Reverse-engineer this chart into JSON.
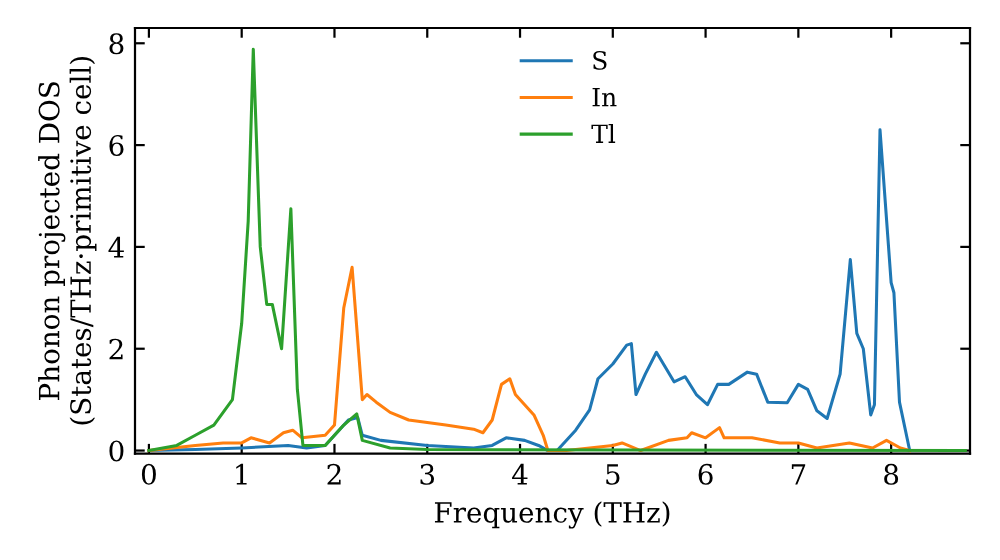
{
  "chart_data": {
    "type": "line",
    "xlabel": "Frequency (THz)",
    "ylabel": "Phonon projected DOS\n(States/THz·primitive cell)",
    "xlim": [
      -0.15,
      8.85
    ],
    "ylim": [
      -0.06,
      8.3
    ],
    "xticks": [
      0,
      1,
      2,
      3,
      4,
      5,
      6,
      7,
      8
    ],
    "yticks": [
      0,
      2,
      4,
      6,
      8
    ],
    "grid": false,
    "legend": "top center",
    "marker": "none",
    "line_style": "solid",
    "series": [
      {
        "name": "S",
        "color": "#1f77b4",
        "x": [
          0,
          0.5,
          1.0,
          1.5,
          1.7,
          1.9,
          2.15,
          2.25,
          2.3,
          2.5,
          3.0,
          3.5,
          3.7,
          3.85,
          4.05,
          4.2,
          4.3,
          4.4,
          4.6,
          4.75,
          4.84,
          5.0,
          5.15,
          5.2,
          5.25,
          5.35,
          5.47,
          5.66,
          5.78,
          5.9,
          6.02,
          6.13,
          6.25,
          6.45,
          6.55,
          6.67,
          6.88,
          7.0,
          7.1,
          7.2,
          7.31,
          7.45,
          7.56,
          7.63,
          7.7,
          7.78,
          7.82,
          7.88,
          8.0,
          8.03,
          8.09,
          8.2
        ],
        "values": [
          0,
          0.02,
          0.05,
          0.1,
          0.05,
          0.1,
          0.6,
          0.65,
          0.3,
          0.2,
          0.1,
          0.05,
          0.1,
          0.25,
          0.2,
          0.1,
          0,
          0,
          0.4,
          0.8,
          1.41,
          1.7,
          2.07,
          2.1,
          1.1,
          1.5,
          1.93,
          1.35,
          1.45,
          1.1,
          0.9,
          1.3,
          1.3,
          1.54,
          1.5,
          0.95,
          0.94,
          1.3,
          1.2,
          0.78,
          0.63,
          1.5,
          3.75,
          2.3,
          2.0,
          0.7,
          0.9,
          6.3,
          3.3,
          3.1,
          0.95,
          0
        ]
      },
      {
        "name": "In",
        "color": "#ff7f0e",
        "x": [
          0,
          0.5,
          0.8,
          1.0,
          1.1,
          1.3,
          1.45,
          1.55,
          1.65,
          1.9,
          2.0,
          2.1,
          2.19,
          2.3,
          2.35,
          2.45,
          2.6,
          2.8,
          3.2,
          3.5,
          3.6,
          3.7,
          3.8,
          3.89,
          3.95,
          4.05,
          4.15,
          4.25,
          4.3,
          4.5,
          5.0,
          5.1,
          5.3,
          5.6,
          5.8,
          5.85,
          6.0,
          6.15,
          6.2,
          6.5,
          6.8,
          7.0,
          7.2,
          7.55,
          7.8,
          7.95,
          8.1,
          8.2
        ],
        "values": [
          0,
          0.1,
          0.15,
          0.15,
          0.25,
          0.15,
          0.35,
          0.4,
          0.25,
          0.3,
          0.5,
          2.8,
          3.6,
          1.0,
          1.1,
          0.95,
          0.75,
          0.6,
          0.5,
          0.42,
          0.35,
          0.6,
          1.3,
          1.41,
          1.1,
          0.9,
          0.7,
          0.3,
          0,
          0,
          0.1,
          0.15,
          0,
          0.2,
          0.25,
          0.35,
          0.25,
          0.45,
          0.25,
          0.25,
          0.15,
          0.15,
          0.05,
          0.15,
          0.05,
          0.2,
          0.05,
          0
        ]
      },
      {
        "name": "Tl",
        "color": "#2ca02c",
        "x": [
          0,
          0.3,
          0.5,
          0.7,
          0.9,
          1.0,
          1.07,
          1.125,
          1.2,
          1.27,
          1.33,
          1.43,
          1.53,
          1.6,
          1.66,
          1.9,
          2.1,
          2.24,
          2.3,
          2.6,
          3.0,
          8.8
        ],
        "values": [
          0,
          0.1,
          0.3,
          0.5,
          1.0,
          2.5,
          4.5,
          7.88,
          4.0,
          2.87,
          2.87,
          2.0,
          4.75,
          1.2,
          0.1,
          0.1,
          0.5,
          0.72,
          0.2,
          0.05,
          0.02,
          0
        ]
      }
    ]
  }
}
